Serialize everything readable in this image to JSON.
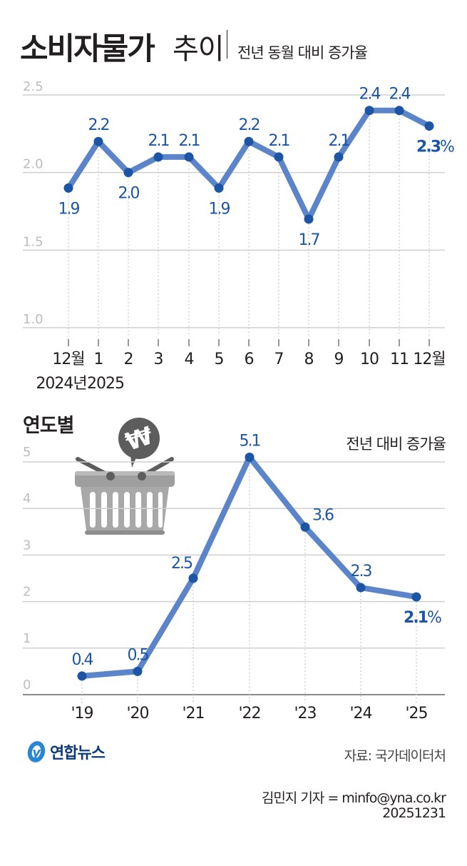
{
  "header": {
    "title_bold": "소비자물가",
    "title_light": "추이",
    "subtitle": "전년 동월 대비 증가율"
  },
  "section2": {
    "title": "연도별",
    "note": "전년 대비 증가율"
  },
  "footer": {
    "logo_text": "연합뉴스",
    "source": "자료: 국가데이터처",
    "byline": "김민지 기자 = minfo@yna.co.kr",
    "date": "20251231"
  },
  "colors": {
    "line": "#5b84c9",
    "marker": "#1b55a3",
    "label": "#1b55a3",
    "grid": "#cfcfcf",
    "axis_text": "#bdbdbd",
    "basket": "#a8a8a8",
    "bubble": "#5d5d5d"
  },
  "chart_data": [
    {
      "type": "line",
      "title": "소비자물가 추이",
      "subtitle": "전년 동월 대비 증가율",
      "categories": [
        "12월",
        "1",
        "2",
        "3",
        "4",
        "5",
        "6",
        "7",
        "8",
        "9",
        "10",
        "11",
        "12월"
      ],
      "sub_categories": {
        "0": "2024년",
        "1": "2025"
      },
      "values": [
        1.9,
        2.2,
        2.0,
        2.1,
        2.1,
        1.9,
        2.2,
        2.1,
        1.7,
        2.1,
        2.4,
        2.4,
        2.3
      ],
      "labels": [
        "1.9",
        "2.2",
        "2.0",
        "2.1",
        "2.1",
        "1.9",
        "2.2",
        "2.1",
        "1.7",
        "2.1",
        "2.4",
        "2.4",
        "2.3%"
      ],
      "label_pos": [
        "below",
        "above",
        "below",
        "above",
        "above",
        "below",
        "above",
        "above",
        "below",
        "above",
        "above",
        "above",
        "below"
      ],
      "yticks": [
        "2.5",
        "2.0",
        "1.5",
        "1.0"
      ],
      "ylim": [
        1.0,
        2.5
      ],
      "xlabel": "",
      "ylabel": "",
      "grid": true,
      "unit": "%"
    },
    {
      "type": "line",
      "title": "연도별",
      "subtitle": "전년 대비 증가율",
      "categories": [
        "'19",
        "'20",
        "'21",
        "'22",
        "'23",
        "'24",
        "'25"
      ],
      "values": [
        0.4,
        0.5,
        2.5,
        5.1,
        3.6,
        2.3,
        2.1
      ],
      "labels": [
        "0.4",
        "0.5",
        "2.5",
        "5.1",
        "3.6",
        "2.3",
        "2.1%"
      ],
      "label_pos": [
        "above",
        "above",
        "left",
        "above",
        "right",
        "above",
        "below"
      ],
      "yticks": [
        "5",
        "4",
        "3",
        "2",
        "1",
        "0"
      ],
      "ylim": [
        0,
        5
      ],
      "xlabel": "",
      "ylabel": "",
      "grid": true,
      "unit": "%"
    }
  ]
}
